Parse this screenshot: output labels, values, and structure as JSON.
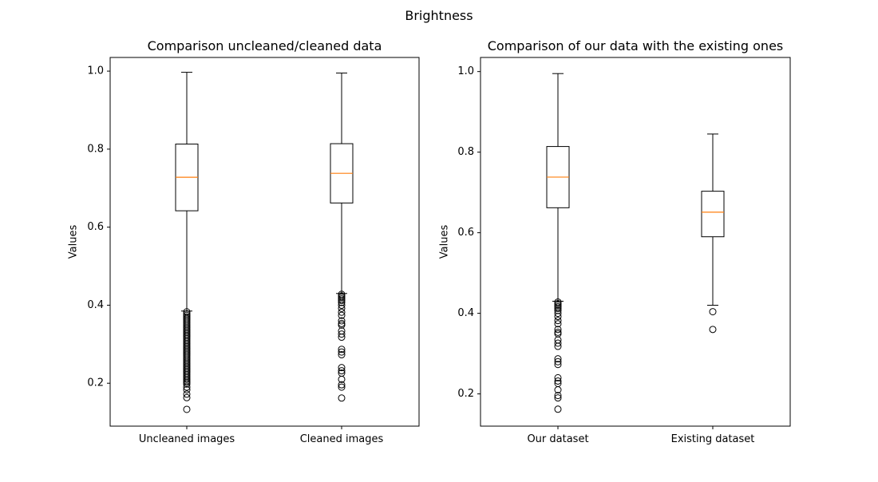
{
  "figure": {
    "title": "Brightness"
  },
  "chart_data": [
    {
      "type": "box",
      "title": "Comparison uncleaned/cleaned data",
      "xlabel": "",
      "ylabel": "Values",
      "ylim": [
        0.09,
        1.035
      ],
      "yticks": [
        0.2,
        0.4,
        0.6,
        0.8,
        1.0
      ],
      "ytick_labels": [
        "0.2",
        "0.4",
        "0.6",
        "0.8",
        "1.0"
      ],
      "median_color": "#ff7f0e",
      "categories": [
        "Uncleaned images",
        "Cleaned images"
      ],
      "boxes": [
        {
          "whisker_low": 0.385,
          "q1": 0.642,
          "median": 0.728,
          "q3": 0.813,
          "whisker_high": 0.997,
          "outliers": [
            0.383,
            0.378,
            0.374,
            0.37,
            0.366,
            0.362,
            0.358,
            0.354,
            0.35,
            0.346,
            0.342,
            0.338,
            0.334,
            0.33,
            0.326,
            0.322,
            0.318,
            0.314,
            0.31,
            0.306,
            0.302,
            0.298,
            0.294,
            0.29,
            0.286,
            0.282,
            0.278,
            0.274,
            0.27,
            0.266,
            0.262,
            0.258,
            0.254,
            0.25,
            0.246,
            0.242,
            0.238,
            0.234,
            0.23,
            0.226,
            0.222,
            0.218,
            0.214,
            0.21,
            0.206,
            0.202,
            0.198,
            0.19,
            0.183,
            0.172,
            0.163,
            0.133
          ]
        },
        {
          "whisker_low": 0.43,
          "q1": 0.662,
          "median": 0.738,
          "q3": 0.814,
          "whisker_high": 0.995,
          "outliers": [
            0.428,
            0.424,
            0.42,
            0.416,
            0.412,
            0.407,
            0.4,
            0.392,
            0.382,
            0.374,
            0.36,
            0.353,
            0.349,
            0.334,
            0.326,
            0.318,
            0.287,
            0.28,
            0.273,
            0.24,
            0.232,
            0.226,
            0.21,
            0.196,
            0.19,
            0.162
          ]
        }
      ]
    },
    {
      "type": "box",
      "title": "Comparison of our data with the existing ones",
      "xlabel": "",
      "ylabel": "Values",
      "ylim": [
        0.12,
        1.035
      ],
      "yticks": [
        0.2,
        0.4,
        0.6,
        0.8,
        1.0
      ],
      "ytick_labels": [
        "0.2",
        "0.4",
        "0.6",
        "0.8",
        "1.0"
      ],
      "median_color": "#ff7f0e",
      "categories": [
        "Our dataset",
        "Existing dataset"
      ],
      "boxes": [
        {
          "whisker_low": 0.43,
          "q1": 0.662,
          "median": 0.738,
          "q3": 0.814,
          "whisker_high": 0.995,
          "outliers": [
            0.428,
            0.424,
            0.42,
            0.416,
            0.412,
            0.407,
            0.4,
            0.392,
            0.382,
            0.374,
            0.36,
            0.353,
            0.349,
            0.334,
            0.326,
            0.318,
            0.287,
            0.28,
            0.273,
            0.24,
            0.232,
            0.226,
            0.21,
            0.196,
            0.19,
            0.162
          ]
        },
        {
          "whisker_low": 0.42,
          "q1": 0.59,
          "median": 0.651,
          "q3": 0.703,
          "whisker_high": 0.845,
          "outliers": [
            0.404,
            0.36
          ]
        }
      ]
    }
  ]
}
